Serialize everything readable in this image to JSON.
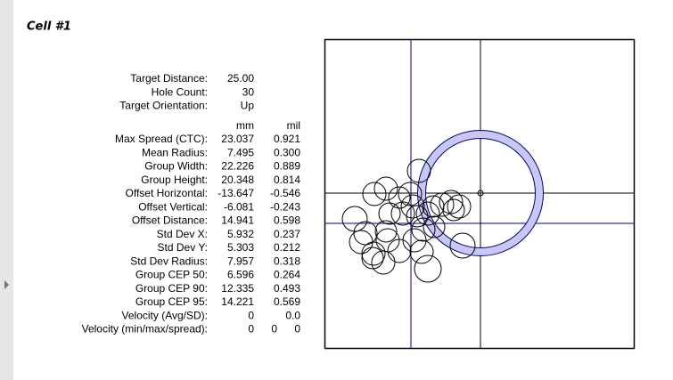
{
  "cell_title": "Cell #1",
  "summary": [
    {
      "label": "Target Distance:",
      "value": "25.00"
    },
    {
      "label": "Hole Count:",
      "value": "30"
    },
    {
      "label": "Target Orientation:",
      "value": "Up"
    }
  ],
  "columns": [
    "mm",
    "mil"
  ],
  "rows": [
    {
      "label": "Max Spread (CTC):",
      "values": [
        "23.037",
        "0.921"
      ]
    },
    {
      "label": "Mean Radius:",
      "values": [
        "7.495",
        "0.300"
      ]
    },
    {
      "label": "Group Width:",
      "values": [
        "22.226",
        "0.889"
      ]
    },
    {
      "label": "Group Height:",
      "values": [
        "20.348",
        "0.814"
      ]
    },
    {
      "label": "Offset Horizontal:",
      "values": [
        "-13.647",
        "-0.546"
      ]
    },
    {
      "label": "Offset Vertical:",
      "values": [
        "-6.081",
        "-0.243"
      ]
    },
    {
      "label": "Offset Distance:",
      "values": [
        "14.941",
        "0.598"
      ]
    },
    {
      "label": "Std Dev X:",
      "values": [
        "5.932",
        "0.237"
      ]
    },
    {
      "label": "Std Dev Y:",
      "values": [
        "5.303",
        "0.212"
      ]
    },
    {
      "label": "Std Dev Radius:",
      "values": [
        "7.957",
        "0.318"
      ]
    },
    {
      "label": "Group CEP 50:",
      "values": [
        "6.596",
        "0.264"
      ]
    },
    {
      "label": "Group CEP 90:",
      "values": [
        "12.335",
        "0.493"
      ]
    },
    {
      "label": "Group CEP 95:",
      "values": [
        "14.221",
        "0.569"
      ]
    },
    {
      "label": "Velocity (Avg/SD):",
      "values": [
        "0",
        "0.0"
      ]
    }
  ],
  "velocity_spread": {
    "label": "Velocity (min/max/spread):",
    "values": [
      "0",
      "0",
      "0"
    ]
  }
}
